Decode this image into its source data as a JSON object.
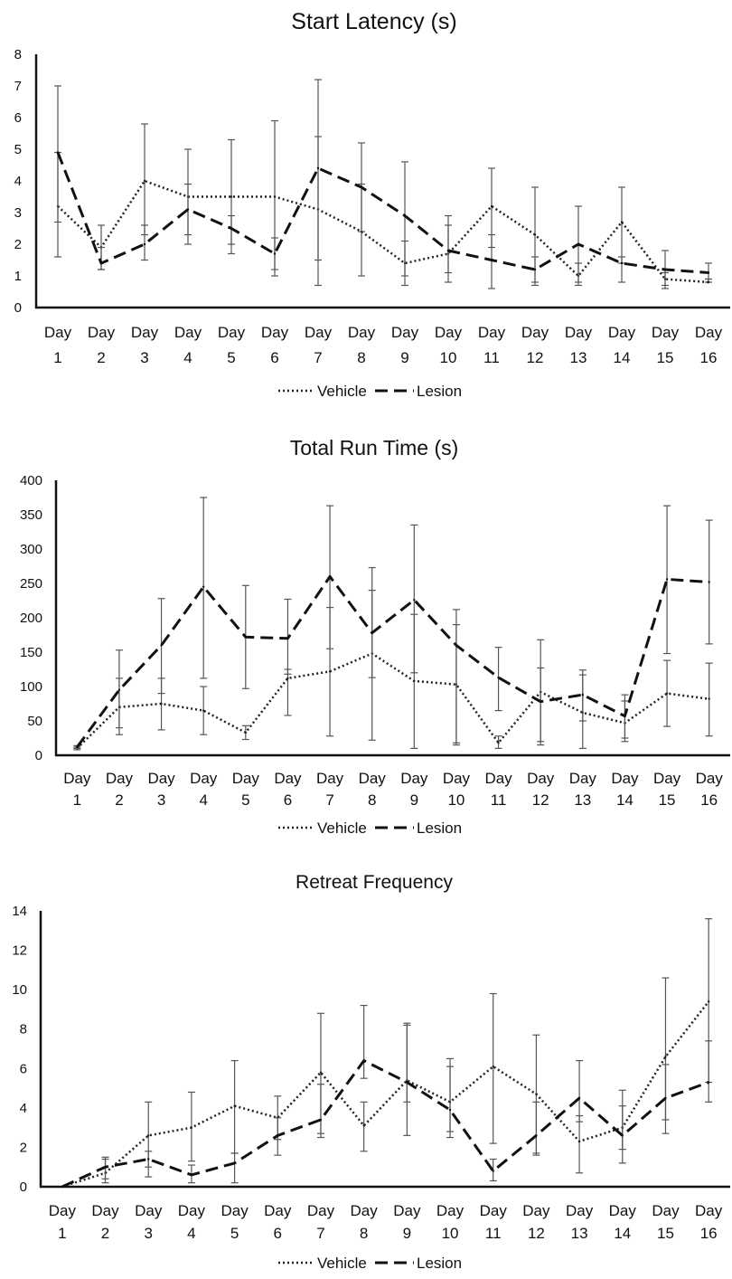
{
  "chart_data": [
    {
      "type": "line",
      "title": "Start Latency (s)",
      "xlabel": "",
      "ylabel": "",
      "ylim": [
        0,
        8
      ],
      "yticks": [
        "0",
        "1",
        "2",
        "3",
        "4",
        "5",
        "6",
        "7",
        "8"
      ],
      "ytick_values": [
        0,
        1,
        2,
        3,
        4,
        5,
        6,
        7,
        8
      ],
      "categories": [
        "Day 1",
        "Day 2",
        "Day 3",
        "Day 4",
        "Day 5",
        "Day 6",
        "Day 7",
        "Day 8",
        "Day 9",
        "Day 10",
        "Day 11",
        "Day 12",
        "Day 13",
        "Day 14",
        "Day 15",
        "Day 16"
      ],
      "grid": false,
      "legend": "bottom",
      "series": [
        {
          "name": "Vehicle",
          "style": "dotted",
          "color": "#222222",
          "values": [
            3.2,
            1.9,
            4.0,
            3.5,
            3.5,
            3.5,
            3.1,
            2.4,
            1.4,
            1.7,
            3.2,
            2.3,
            1.0,
            2.7,
            0.9,
            0.8
          ],
          "err_low": [
            1.6,
            1.2,
            2.3,
            2.0,
            1.7,
            1.0,
            0.7,
            1.0,
            0.7,
            0.8,
            0.6,
            0.7,
            0.7,
            0.8,
            0.6,
            0.8
          ],
          "err_high": [
            4.9,
            2.6,
            5.8,
            5.0,
            5.3,
            5.9,
            5.4,
            3.9,
            2.1,
            2.6,
            4.4,
            3.8,
            1.4,
            3.8,
            1.1,
            0.9
          ]
        },
        {
          "name": "Lesion",
          "style": "dashed",
          "color": "#111111",
          "values": [
            4.9,
            1.4,
            2.0,
            3.1,
            2.5,
            1.7,
            4.4,
            3.8,
            2.9,
            1.8,
            1.5,
            1.2,
            2.0,
            1.4,
            1.2,
            1.1
          ],
          "err_low": [
            2.7,
            1.2,
            1.5,
            2.3,
            2.0,
            1.2,
            1.5,
            2.4,
            1.0,
            1.1,
            1.9,
            0.8,
            0.8,
            1.4,
            0.7,
            0.9
          ],
          "err_high": [
            7.0,
            1.9,
            2.6,
            3.9,
            2.9,
            2.2,
            7.2,
            5.2,
            4.6,
            2.9,
            2.3,
            1.6,
            3.2,
            1.6,
            1.8,
            1.4
          ]
        }
      ]
    },
    {
      "type": "line",
      "title": "Total  Run Time (s)",
      "xlabel": "",
      "ylabel": "",
      "ylim": [
        0,
        400
      ],
      "yticks": [
        "0",
        "50",
        "100",
        "150",
        "200",
        "250",
        "300",
        "350",
        "400"
      ],
      "ytick_values": [
        0,
        50,
        100,
        150,
        200,
        250,
        300,
        350,
        400
      ],
      "categories": [
        "Day 1",
        "Day 2",
        "Day 3",
        "Day 4",
        "Day 5",
        "Day 6",
        "Day 7",
        "Day 8",
        "Day 9",
        "Day 10",
        "Day 11",
        "Day 12",
        "Day 13",
        "Day 14",
        "Day 15",
        "Day 16"
      ],
      "grid": false,
      "legend": "bottom",
      "series": [
        {
          "name": "Vehicle",
          "style": "dotted",
          "color": "#222222",
          "values": [
            10,
            70,
            75,
            65,
            33,
            112,
            122,
            148,
            108,
            103,
            18,
            92,
            62,
            47,
            90,
            82
          ],
          "err_low": [
            8,
            30,
            37,
            30,
            23,
            58,
            28,
            22,
            10,
            18,
            10,
            20,
            10,
            20,
            42,
            28
          ],
          "err_high": [
            12,
            112,
            112,
            100,
            43,
            125,
            215,
            273,
            205,
            190,
            28,
            127,
            117,
            79,
            138,
            134
          ]
        },
        {
          "name": "Lesion",
          "style": "dashed",
          "color": "#111111",
          "values": [
            12,
            95,
            160,
            245,
            172,
            170,
            260,
            178,
            226,
            160,
            113,
            78,
            88,
            57,
            256,
            252
          ],
          "err_low": [
            10,
            40,
            90,
            112,
            97,
            118,
            155,
            113,
            120,
            15,
            65,
            15,
            50,
            25,
            148,
            162
          ],
          "err_high": [
            14,
            153,
            228,
            375,
            247,
            227,
            363,
            240,
            335,
            212,
            157,
            168,
            124,
            88,
            363,
            342
          ]
        }
      ]
    },
    {
      "type": "line",
      "title": "Retreat Frequency",
      "xlabel": "",
      "ylabel": "",
      "ylim": [
        0,
        14
      ],
      "yticks": [
        "0",
        "2",
        "4",
        "6",
        "8",
        "10",
        "12",
        "14"
      ],
      "ytick_values": [
        0,
        2,
        4,
        6,
        8,
        10,
        12,
        14
      ],
      "categories": [
        "Day 1",
        "Day 2",
        "Day 3",
        "Day 4",
        "Day 5",
        "Day 6",
        "Day 7",
        "Day 8",
        "Day 9",
        "Day 10",
        "Day 11",
        "Day 12",
        "Day 13",
        "Day 14",
        "Day 15",
        "Day 16"
      ],
      "grid": false,
      "legend": "bottom",
      "series": [
        {
          "name": "Vehicle",
          "style": "dotted",
          "color": "#222222",
          "values": [
            0.0,
            0.7,
            2.6,
            3.0,
            4.1,
            3.5,
            5.8,
            3.1,
            5.4,
            4.3,
            6.1,
            4.7,
            2.3,
            3.0,
            6.6,
            9.4
          ],
          "err_low": [
            0.0,
            0.2,
            1.0,
            1.3,
            1.7,
            2.4,
            2.5,
            1.8,
            2.6,
            2.5,
            2.2,
            1.6,
            0.7,
            1.2,
            2.7,
            5.3
          ],
          "err_high": [
            0.0,
            1.5,
            4.3,
            4.8,
            6.4,
            4.6,
            8.8,
            4.3,
            8.2,
            6.1,
            9.8,
            7.7,
            3.6,
            4.9,
            10.6,
            13.6
          ]
        },
        {
          "name": "Lesion",
          "style": "dashed",
          "color": "#111111",
          "values": [
            0.0,
            1.0,
            1.4,
            0.6,
            1.2,
            2.6,
            3.4,
            6.4,
            5.3,
            3.9,
            0.8,
            2.6,
            4.5,
            2.6,
            4.5,
            5.3
          ],
          "err_low": [
            0.0,
            0.4,
            0.5,
            0.2,
            0.2,
            1.6,
            2.7,
            5.5,
            4.3,
            2.8,
            0.3,
            1.7,
            3.3,
            1.9,
            3.4,
            4.3
          ],
          "err_high": [
            0.0,
            1.4,
            1.8,
            1.1,
            1.7,
            3.5,
            5.2,
            9.2,
            8.3,
            6.5,
            1.4,
            4.3,
            6.4,
            4.1,
            6.2,
            7.4
          ]
        }
      ]
    }
  ]
}
